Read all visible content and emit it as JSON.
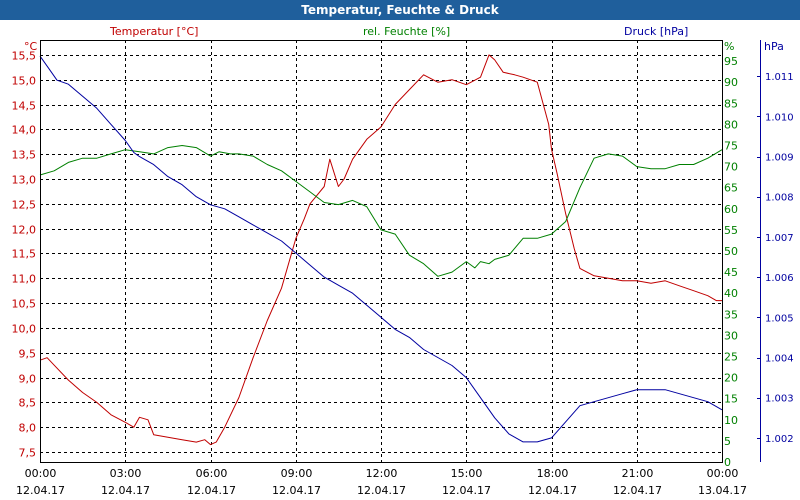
{
  "window": {
    "title": "Temperatur, Feuchte & Druck"
  },
  "colors": {
    "temperature": "#c00000",
    "humidity": "#008000",
    "pressure": "#0000a0",
    "title_bar": "#1f5f9c",
    "grid": "#000000"
  },
  "chart_data": {
    "type": "line",
    "title": "Temperatur, Feuchte & Druck",
    "x_ticks": [
      {
        "time": "00:00",
        "date": "12.04.17"
      },
      {
        "time": "03:00",
        "date": "12.04.17"
      },
      {
        "time": "06:00",
        "date": "12.04.17"
      },
      {
        "time": "09:00",
        "date": "12.04.17"
      },
      {
        "time": "12:00",
        "date": "12.04.17"
      },
      {
        "time": "15:00",
        "date": "12.04.17"
      },
      {
        "time": "18:00",
        "date": "12.04.17"
      },
      {
        "time": "21:00",
        "date": "12.04.17"
      },
      {
        "time": "00:00",
        "date": "13.04.17"
      }
    ],
    "xlim": [
      "12.04.17 00:00",
      "13.04.17 00:00"
    ],
    "grid": true,
    "axes": {
      "temperature": {
        "title": "Temperatur [°C]",
        "unit": "°C",
        "ylim": [
          7.3,
          15.8
        ],
        "ticks": [
          "7,5",
          "8,0",
          "8,5",
          "9,0",
          "9,5",
          "10,0",
          "10,5",
          "11,0",
          "11,5",
          "12,0",
          "12,5",
          "13,0",
          "13,5",
          "14,0",
          "14,5",
          "15,0",
          "15,5"
        ]
      },
      "humidity": {
        "title": "rel. Feuchte [%]",
        "unit": "%",
        "ylim": [
          0,
          100
        ],
        "ticks": [
          "0",
          "5",
          "10",
          "15",
          "20",
          "25",
          "30",
          "35",
          "40",
          "45",
          "50",
          "55",
          "60",
          "65",
          "70",
          "75",
          "80",
          "85",
          "90",
          "95"
        ]
      },
      "pressure": {
        "title": "Druck [hPa]",
        "unit": "hPa",
        "ylim": [
          1.0014,
          1.0119
        ],
        "ticks": [
          "1.002",
          "1.003",
          "1.004",
          "1.005",
          "1.006",
          "1.007",
          "1.008",
          "1.009",
          "1.010",
          "1.011"
        ]
      }
    },
    "series": [
      {
        "name": "Temperatur [°C]",
        "axis": "temperature",
        "x": [
          0,
          0.25,
          0.5,
          1,
          1.5,
          2,
          2.5,
          3,
          3.3,
          3.5,
          3.8,
          4,
          4.5,
          5,
          5.5,
          5.8,
          6,
          6.2,
          6.5,
          7,
          7.5,
          8,
          8.5,
          9,
          9.3,
          9.5,
          10,
          10.2,
          10.5,
          10.7,
          11,
          11.5,
          12,
          12.5,
          13,
          13.5,
          14,
          14.5,
          15,
          15.5,
          15.8,
          16,
          16.3,
          16.7,
          17,
          17.5,
          17.9,
          18,
          18.2,
          18.5,
          18.8,
          19,
          19.5,
          20,
          20.5,
          21,
          21.5,
          22,
          22.5,
          23,
          23.5,
          23.8,
          24
        ],
        "y": [
          9.35,
          9.4,
          9.25,
          8.95,
          8.7,
          8.5,
          8.25,
          8.1,
          8.0,
          8.2,
          8.15,
          7.85,
          7.8,
          7.75,
          7.7,
          7.75,
          7.65,
          7.7,
          8.0,
          8.6,
          9.4,
          10.15,
          10.8,
          11.8,
          12.2,
          12.5,
          12.85,
          13.4,
          12.85,
          13.0,
          13.4,
          13.8,
          14.05,
          14.5,
          14.8,
          15.1,
          14.95,
          15.0,
          14.9,
          15.05,
          15.5,
          15.4,
          15.15,
          15.1,
          15.05,
          14.95,
          14.1,
          13.6,
          13.1,
          12.3,
          11.6,
          11.2,
          11.05,
          11.0,
          10.95,
          10.95,
          10.9,
          10.95,
          10.85,
          10.75,
          10.65,
          10.55,
          10.55
        ]
      },
      {
        "name": "rel. Feuchte [%]",
        "axis": "humidity",
        "x": [
          0,
          0.5,
          1,
          1.5,
          2,
          2.5,
          3,
          3.5,
          4,
          4.5,
          5,
          5.5,
          6,
          6.3,
          6.7,
          7,
          7.5,
          8,
          8.5,
          9,
          9.5,
          10,
          10.5,
          11,
          11.5,
          12,
          12.5,
          13,
          13.5,
          14,
          14.5,
          15,
          15.3,
          15.5,
          15.8,
          16,
          16.5,
          17,
          17.5,
          18,
          18.5,
          19,
          19.5,
          20,
          20.5,
          21,
          21.5,
          22,
          22.5,
          23,
          23.5,
          24
        ],
        "y": [
          68,
          69,
          71,
          72,
          72,
          73,
          74,
          73.5,
          73,
          74.5,
          75,
          74.5,
          72.5,
          73.5,
          73,
          73,
          72.5,
          70.5,
          69,
          66.5,
          64,
          61.5,
          61,
          62,
          60.5,
          55,
          54,
          49,
          47,
          44,
          45,
          47.5,
          46,
          47.5,
          47,
          48,
          49,
          53,
          53,
          54,
          57,
          65,
          72,
          73,
          72.5,
          70,
          69.5,
          69.5,
          70.5,
          70.5,
          72,
          74
        ]
      },
      {
        "name": "Druck [hPa]",
        "axis": "pressure",
        "x": [
          0,
          0.3,
          0.6,
          1,
          1.5,
          2,
          2.5,
          3,
          3.3,
          3.5,
          4,
          4.5,
          5,
          5.5,
          6,
          6.5,
          7,
          7.5,
          8,
          8.5,
          9,
          9.5,
          10,
          10.5,
          11,
          11.5,
          12,
          12.5,
          13,
          13.5,
          14,
          14.5,
          15,
          15.5,
          16,
          16.5,
          17,
          17.5,
          18,
          18.5,
          19,
          19.5,
          20,
          20.5,
          21,
          21.5,
          22,
          22.5,
          23,
          23.5,
          24
        ],
        "y": [
          1.0115,
          1.0112,
          1.0109,
          1.0108,
          1.0105,
          1.0102,
          1.0098,
          1.0094,
          1.0091,
          1.009,
          1.0088,
          1.0085,
          1.0083,
          1.008,
          1.0078,
          1.0077,
          1.0075,
          1.0073,
          1.0071,
          1.0069,
          1.0066,
          1.0063,
          1.006,
          1.0058,
          1.0056,
          1.0053,
          1.005,
          1.0047,
          1.0045,
          1.0042,
          1.004,
          1.0038,
          1.0035,
          1.003,
          1.0025,
          1.0021,
          1.0019,
          1.0019,
          1.002,
          1.0024,
          1.0028,
          1.0029,
          1.003,
          1.0031,
          1.0032,
          1.0032,
          1.0032,
          1.0031,
          1.003,
          1.0029,
          1.0027
        ]
      }
    ]
  }
}
